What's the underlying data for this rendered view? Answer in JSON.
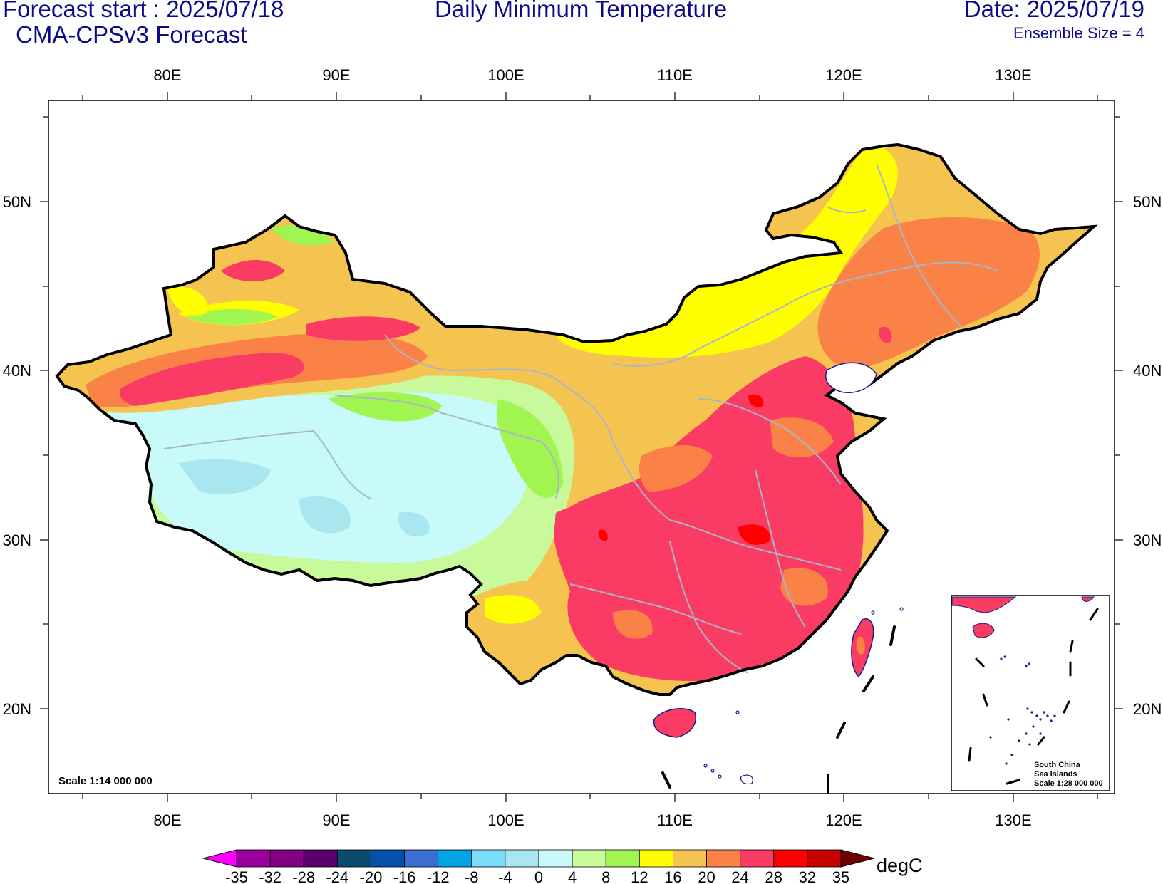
{
  "header": {
    "forecast_start": "Forecast start : 2025/07/18",
    "model": "CMA-CPSv3 Forecast",
    "title": "Daily Minimum Temperature",
    "date": "Date: 2025/07/19",
    "ensemble": "Ensemble Size = 4"
  },
  "map": {
    "lon_labels": [
      "80E",
      "90E",
      "100E",
      "110E",
      "120E",
      "130E"
    ],
    "lat_labels": [
      "50N",
      "40N",
      "30N",
      "20N"
    ],
    "scale_text": "Scale 1:14 000 000",
    "inset": {
      "line1": "South China",
      "line2": "Sea Islands",
      "line3": "Scale 1:28 000 000"
    }
  },
  "colorbar": {
    "unit": "degC",
    "ticks": [
      "-35",
      "-32",
      "-28",
      "-24",
      "-20",
      "-16",
      "-12",
      "-8",
      "-4",
      "0",
      "4",
      "8",
      "12",
      "16",
      "20",
      "24",
      "28",
      "32",
      "35"
    ],
    "colors": [
      "#ff00ff",
      "#9c009c",
      "#820082",
      "#5a006e",
      "#0a4b6e",
      "#0550aa",
      "#3c6ed2",
      "#00a5e6",
      "#78dcfa",
      "#a8e6f0",
      "#c8fafa",
      "#c8fa9b",
      "#a0f550",
      "#ffff00",
      "#f5c350",
      "#fa8246",
      "#fa3c64",
      "#ff0000",
      "#c80000",
      "#6e0000"
    ]
  }
}
